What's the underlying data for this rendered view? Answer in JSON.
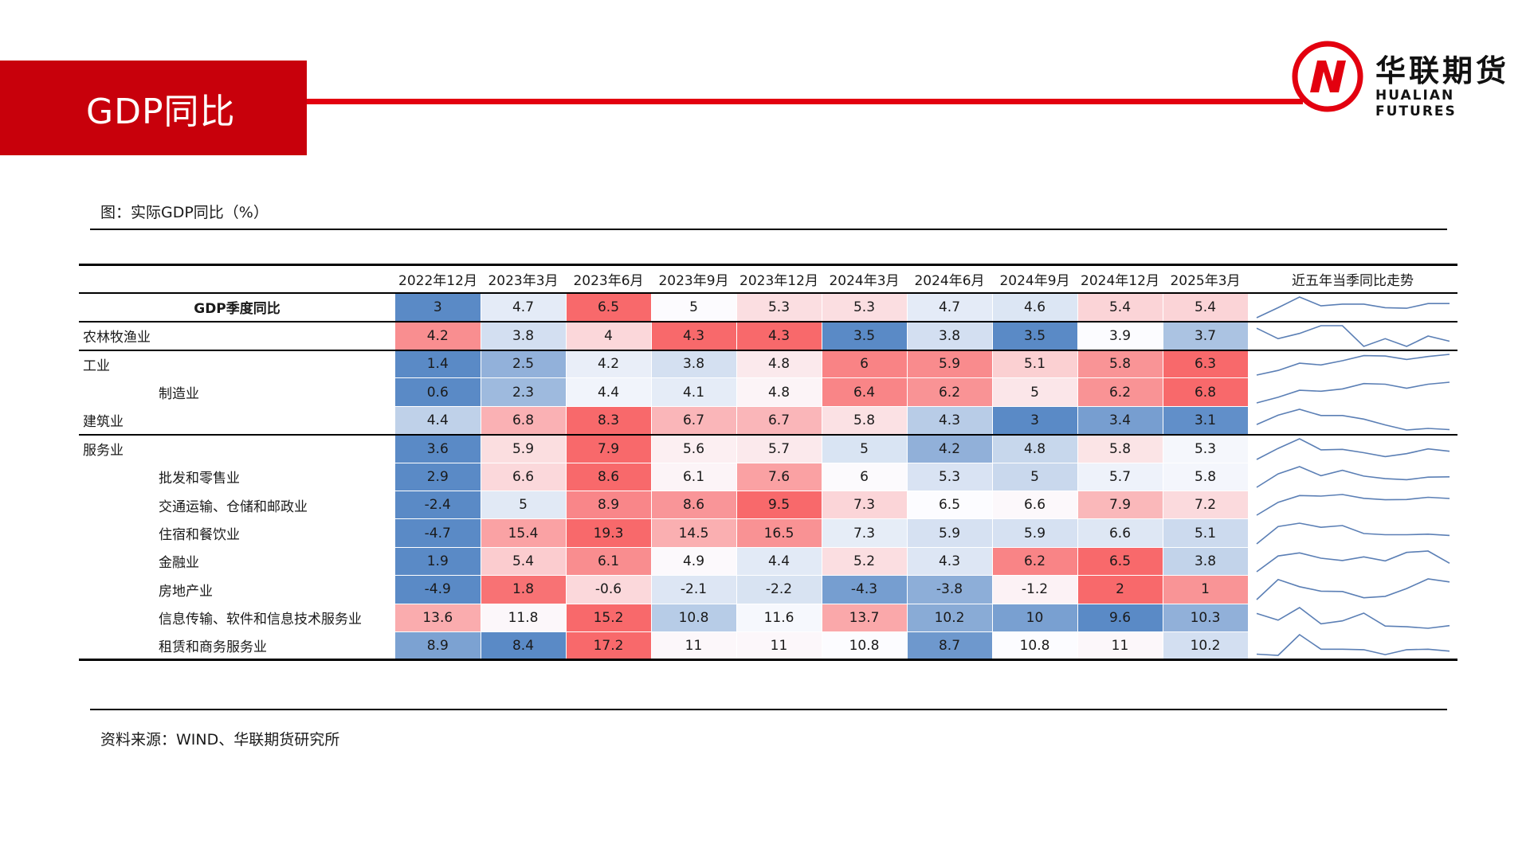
{
  "header": {
    "title": "GDP同比",
    "logo_cn": "华联期货",
    "logo_en": "HUALIAN FUTURES",
    "logo_icon": "hualian-logo-icon"
  },
  "figure": {
    "caption": "图：实际GDP同比（%）",
    "source": "资料来源：WIND、华联期货研究所"
  },
  "colors": {
    "accent_red": "#c8000b",
    "heat_high": "#f8696b",
    "heat_low": "#5a8ac6",
    "heat_mid": "#fcfcff",
    "spark_line": "#5b7fb5",
    "spark_marker": "#2eaa55"
  },
  "table": {
    "columns": [
      "2022年12月",
      "2023年3月",
      "2023年6月",
      "2023年9月",
      "2023年12月",
      "2024年3月",
      "2024年6月",
      "2024年9月",
      "2024年12月",
      "2025年3月"
    ],
    "trend_header": "近五年当季同比走势",
    "rows": [
      {
        "label": "GDP季度同比",
        "values": [
          3,
          4.7,
          6.5,
          5,
          5.3,
          5.3,
          4.7,
          4.6,
          5.4,
          5.4
        ]
      },
      {
        "label": "农林牧渔业",
        "values": [
          4.2,
          3.8,
          4,
          4.3,
          4.3,
          3.5,
          3.8,
          3.5,
          3.9,
          3.7
        ]
      },
      {
        "label": "工业",
        "values": [
          1.4,
          2.5,
          4.2,
          3.8,
          4.8,
          6,
          5.9,
          5.1,
          5.8,
          6.3
        ]
      },
      {
        "label": "制造业",
        "values": [
          0.6,
          2.3,
          4.4,
          4.1,
          4.8,
          6.4,
          6.2,
          5,
          6.2,
          6.8
        ]
      },
      {
        "label": "建筑业",
        "values": [
          4.4,
          6.8,
          8.3,
          6.7,
          6.7,
          5.8,
          4.3,
          3,
          3.4,
          3.1
        ]
      },
      {
        "label": "服务业",
        "values": [
          3.6,
          5.9,
          7.9,
          5.6,
          5.7,
          5,
          4.2,
          4.8,
          5.8,
          5.3
        ]
      },
      {
        "label": "批发和零售业",
        "values": [
          2.9,
          6.6,
          8.6,
          6.1,
          7.6,
          6,
          5.3,
          5,
          5.7,
          5.8
        ]
      },
      {
        "label": "交通运输、仓储和邮政业",
        "values": [
          -2.4,
          5,
          8.9,
          8.6,
          9.5,
          7.3,
          6.5,
          6.6,
          7.9,
          7.2
        ]
      },
      {
        "label": "住宿和餐饮业",
        "values": [
          -4.7,
          15.4,
          19.3,
          14.5,
          16.5,
          7.3,
          5.9,
          5.9,
          6.6,
          5.1
        ]
      },
      {
        "label": "金融业",
        "values": [
          1.9,
          5.4,
          6.1,
          4.9,
          4.4,
          5.2,
          4.3,
          6.2,
          6.5,
          3.8
        ]
      },
      {
        "label": "房地产业",
        "values": [
          -4.9,
          1.8,
          -0.6,
          -2.1,
          -2.2,
          -4.3,
          -3.8,
          -1.2,
          2,
          1
        ]
      },
      {
        "label": "信息传输、软件和信息技术服务业",
        "values": [
          13.6,
          11.8,
          15.2,
          10.8,
          11.6,
          13.7,
          10.2,
          10,
          9.6,
          10.3
        ]
      },
      {
        "label": "租赁和商务服务业",
        "values": [
          8.9,
          8.4,
          17.2,
          11,
          11,
          10.8,
          8.7,
          10.8,
          11,
          10.2
        ]
      }
    ]
  }
}
